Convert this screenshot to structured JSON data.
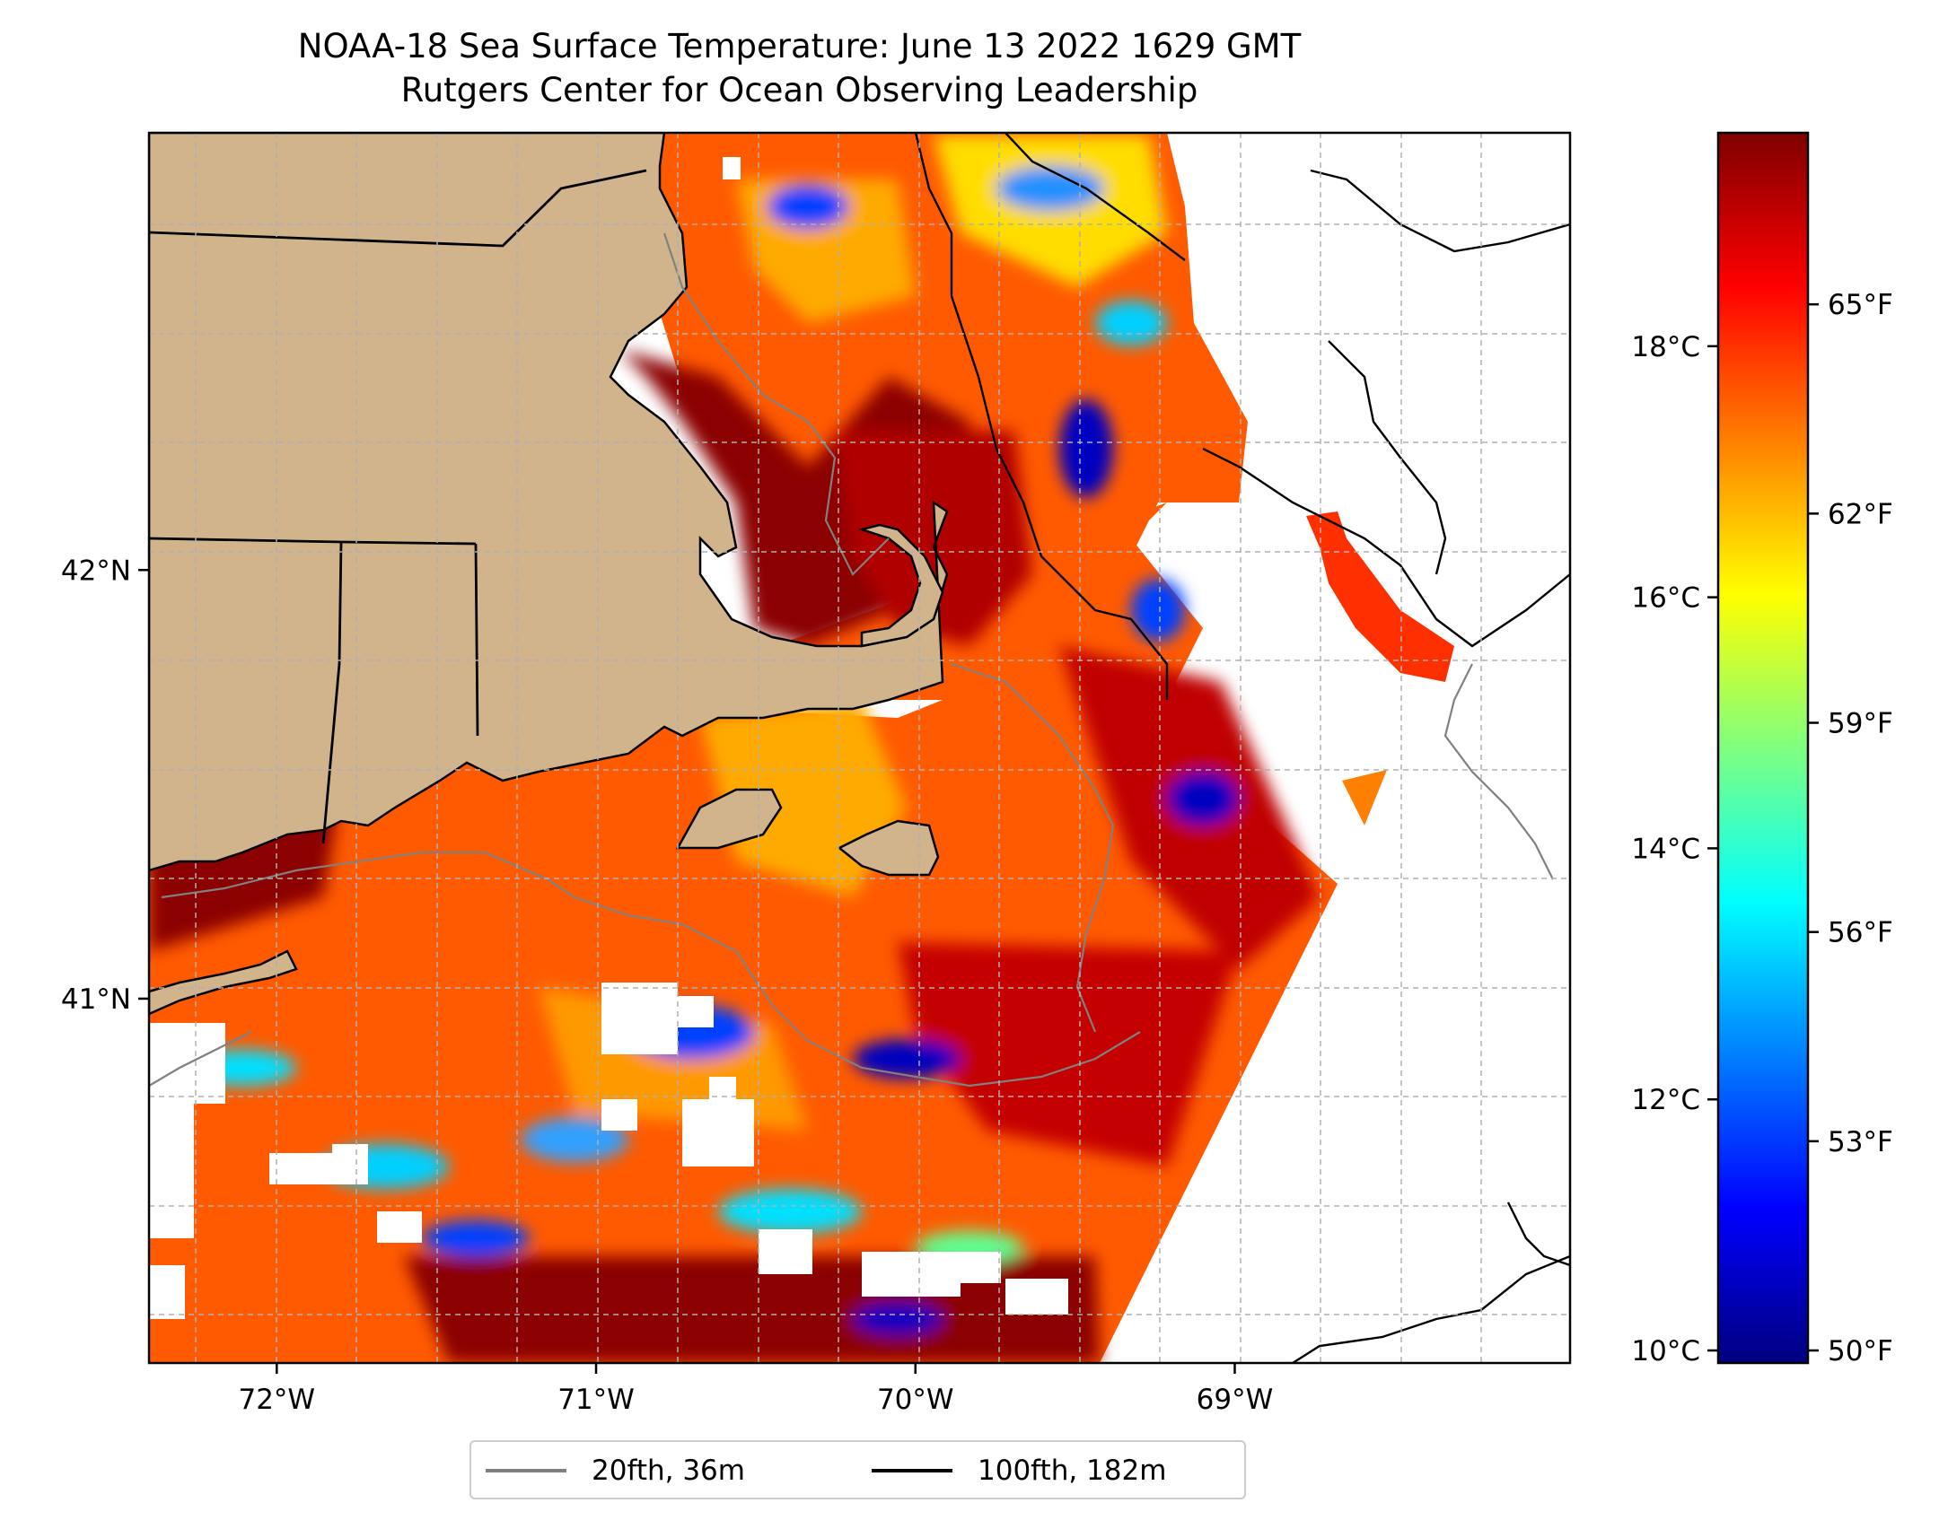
{
  "title": {
    "line1": "NOAA-18 Sea Surface Temperature: June 13 2022 1629 GMT",
    "line2": "Rutgers Center for Ocean Observing Leadership"
  },
  "map": {
    "lon_range": [
      -72.4,
      -67.95
    ],
    "lat_range": [
      40.15,
      43.02
    ],
    "lon_ticks": [
      {
        "value": -72,
        "label": "72°W"
      },
      {
        "value": -71,
        "label": "71°W"
      },
      {
        "value": -70,
        "label": "70°W"
      },
      {
        "value": -69,
        "label": "69°W"
      }
    ],
    "lat_ticks": [
      {
        "value": 42,
        "label": "42°N"
      },
      {
        "value": 41,
        "label": "41°N"
      }
    ],
    "gridlines": true,
    "land_color": "#d2b48c",
    "coastline_color": "#000000",
    "state_borders_color": "#000000"
  },
  "legend": {
    "position": "bottom-center",
    "items": [
      {
        "label": "20fth, 36m",
        "color": "#808080"
      },
      {
        "label": "100fth, 182m",
        "color": "#000000"
      }
    ]
  },
  "colorbar": {
    "colormap": "jet",
    "colors": [
      "#00007f",
      "#0000ff",
      "#007fff",
      "#00ffff",
      "#7fff7f",
      "#ffff00",
      "#ff7f00",
      "#ff0000",
      "#7f0000"
    ],
    "celsius_range": [
      9.9,
      19.7
    ],
    "celsius_ticks": [
      {
        "value": 10,
        "label": "10°C"
      },
      {
        "value": 12,
        "label": "12°C"
      },
      {
        "value": 14,
        "label": "14°C"
      },
      {
        "value": 16,
        "label": "16°C"
      },
      {
        "value": 18,
        "label": "18°C"
      }
    ],
    "fahrenheit_ticks": [
      {
        "value": 50,
        "label": "50°F"
      },
      {
        "value": 53,
        "label": "53°F"
      },
      {
        "value": 56,
        "label": "56°F"
      },
      {
        "value": 59,
        "label": "59°F"
      },
      {
        "value": 62,
        "label": "62°F"
      },
      {
        "value": 65,
        "label": "65°F"
      }
    ]
  }
}
